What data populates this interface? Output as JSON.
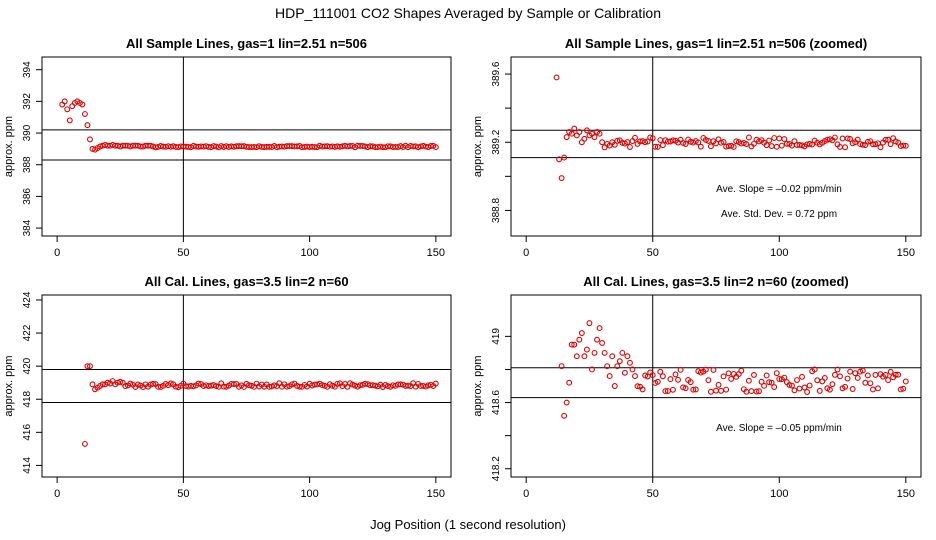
{
  "figure": {
    "title": "HDP_111001  CO2 Shapes Averaged by Sample or Calibration",
    "xlabel": "Jog Position (1 second resolution)"
  },
  "colors": {
    "points": "#e00000",
    "axis": "#000000"
  },
  "chart_data": [
    {
      "id": "p1",
      "type": "scatter",
      "title": "All Sample Lines, gas=1 lin=2.51 n=506",
      "xlabel": "",
      "ylabel": "approx. ppm",
      "xlim": [
        -6,
        156
      ],
      "ylim": [
        383.5,
        394.8
      ],
      "xticks": [
        0,
        50,
        100,
        150
      ],
      "yticks": [
        384,
        386,
        388,
        390,
        392,
        394
      ],
      "hlines": [
        390.2,
        388.3
      ],
      "vline": 50,
      "points": {
        "x_start": 2,
        "x_end": 150,
        "y": [
          391.8,
          392.0,
          391.5,
          390.8,
          391.7,
          391.9,
          392.0,
          391.9,
          391.8,
          391.2,
          390.5,
          389.6,
          389.0,
          388.95,
          389.05,
          389.15,
          389.2,
          389.25,
          389.2,
          389.2,
          389.25,
          389.2,
          389.2,
          389.15,
          389.2,
          389.2,
          389.2,
          389.15,
          389.2,
          389.2,
          389.2,
          389.15,
          389.15,
          389.2,
          389.2,
          389.2,
          389.15,
          389.1
        ],
        "y_tail": 389.15,
        "y_tail_jitter": 0.05
      }
    },
    {
      "id": "p2",
      "type": "scatter",
      "title": "All Sample Lines, gas=1 lin=2.51 n=506 (zoomed)",
      "xlabel": "",
      "ylabel": "approx. ppm",
      "xlim": [
        -6,
        156
      ],
      "ylim": [
        388.65,
        389.7
      ],
      "xticks": [
        0,
        50,
        100,
        150
      ],
      "yticks": [
        388.8,
        389.2,
        389.6
      ],
      "yticks_minor": [
        389.0,
        389.4
      ],
      "hlines": [
        389.27,
        389.11
      ],
      "vline": 50,
      "annotations": [
        "Ave. Slope =  –0.02  ppm/min",
        "Ave. Std. Dev. =  0.72  ppm"
      ],
      "points": {
        "x_start": 12,
        "x_end": 150,
        "y": [
          389.58,
          389.1,
          388.99,
          389.11,
          389.23,
          389.26,
          389.25,
          389.28,
          389.24,
          389.26,
          389.2,
          389.22,
          389.27,
          389.24,
          389.25,
          389.23,
          389.26,
          389.25,
          389.2,
          389.17,
          389.19,
          389.18,
          389.2
        ],
        "y_tail": 389.2,
        "y_tail_jitter": 0.03
      }
    },
    {
      "id": "p3",
      "type": "scatter",
      "title": "All Cal. Lines, gas=3.5 lin=2 n=60",
      "xlabel": "",
      "ylabel": "approx. ppm",
      "xlim": [
        -6,
        156
      ],
      "ylim": [
        413.3,
        424.3
      ],
      "xticks": [
        0,
        50,
        100,
        150
      ],
      "yticks": [
        414,
        416,
        418,
        420,
        422,
        424
      ],
      "hlines": [
        419.8,
        417.8
      ],
      "vline": 50,
      "points": {
        "x_start": 11,
        "x_end": 150,
        "y": [
          415.3,
          420.0,
          420.0,
          418.9,
          418.6,
          418.7,
          418.8,
          418.9,
          418.9,
          419.0,
          418.95,
          419.1,
          418.9,
          419.0,
          419.05,
          419.0
        ],
        "y_tail": 418.85,
        "y_tail_jitter": 0.12
      }
    },
    {
      "id": "p4",
      "type": "scatter",
      "title": "All Cal. Lines, gas=3.5 lin=2 n=60 (zoomed)",
      "xlabel": "",
      "ylabel": "approx. ppm",
      "xlim": [
        -6,
        156
      ],
      "ylim": [
        418.15,
        419.25
      ],
      "xticks": [
        0,
        50,
        100,
        150
      ],
      "yticks": [
        418.2,
        418.6,
        419.0
      ],
      "yticks_minor": [
        418.4,
        418.8
      ],
      "hlines": [
        418.81,
        418.63
      ],
      "vline": 50,
      "annotations": [
        "Ave. Slope =  –0.05  ppm/min"
      ],
      "points": {
        "x_start": 14,
        "x_end": 150,
        "y": [
          418.82,
          418.52,
          418.6,
          418.72,
          418.95,
          418.95,
          418.88,
          418.98,
          419.02,
          418.88,
          418.92,
          419.08,
          418.8,
          418.9,
          418.98,
          419.05,
          418.96,
          418.9,
          418.82,
          418.76,
          418.88,
          418.7,
          418.82,
          418.85,
          418.9,
          418.78,
          418.88,
          418.84,
          418.8,
          418.76
        ],
        "y_tail": 418.73,
        "y_tail_jitter": 0.07
      }
    }
  ]
}
